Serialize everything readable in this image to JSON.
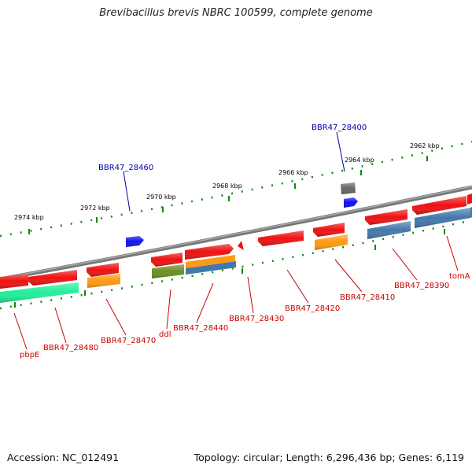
{
  "title": "Brevibacillus brevis NBRC 100599, complete genome",
  "accession": "Accession: NC_012491",
  "topology": "Topology: circular; Length: 6,296,436 bp; Genes: 6,119",
  "colors": {
    "red": "#ee1111",
    "orange": "#ff9911",
    "steelblue": "#4477aa",
    "olive": "#6b8e23",
    "seagreen": "#22ee99",
    "blue": "#1111ee",
    "gray": "#666666",
    "backbone": "#888888",
    "tick": "#118811",
    "label_red": "#cc0000",
    "label_blue": "#0000aa"
  },
  "scale_labels": [
    {
      "text": "2974 kbp"
    },
    {
      "text": "2972 kbp"
    },
    {
      "text": "2970 kbp"
    },
    {
      "text": "2968 kbp"
    },
    {
      "text": "2966 kbp"
    },
    {
      "text": "2964 kbp"
    },
    {
      "text": "2962 kbp"
    }
  ],
  "gene_labels": [
    {
      "text": "pbpE"
    },
    {
      "text": "BBR47_28480"
    },
    {
      "text": "BBR47_28470"
    },
    {
      "text": "ddl"
    },
    {
      "text": "BBR47_28440"
    },
    {
      "text": "BBR47_28430"
    },
    {
      "text": "BBR47_28420"
    },
    {
      "text": "BBR47_28410"
    },
    {
      "text": "BBR47_28390"
    },
    {
      "text": "tomA"
    },
    {
      "text": "BBR47_28460"
    },
    {
      "text": "BBR47_28400"
    }
  ]
}
